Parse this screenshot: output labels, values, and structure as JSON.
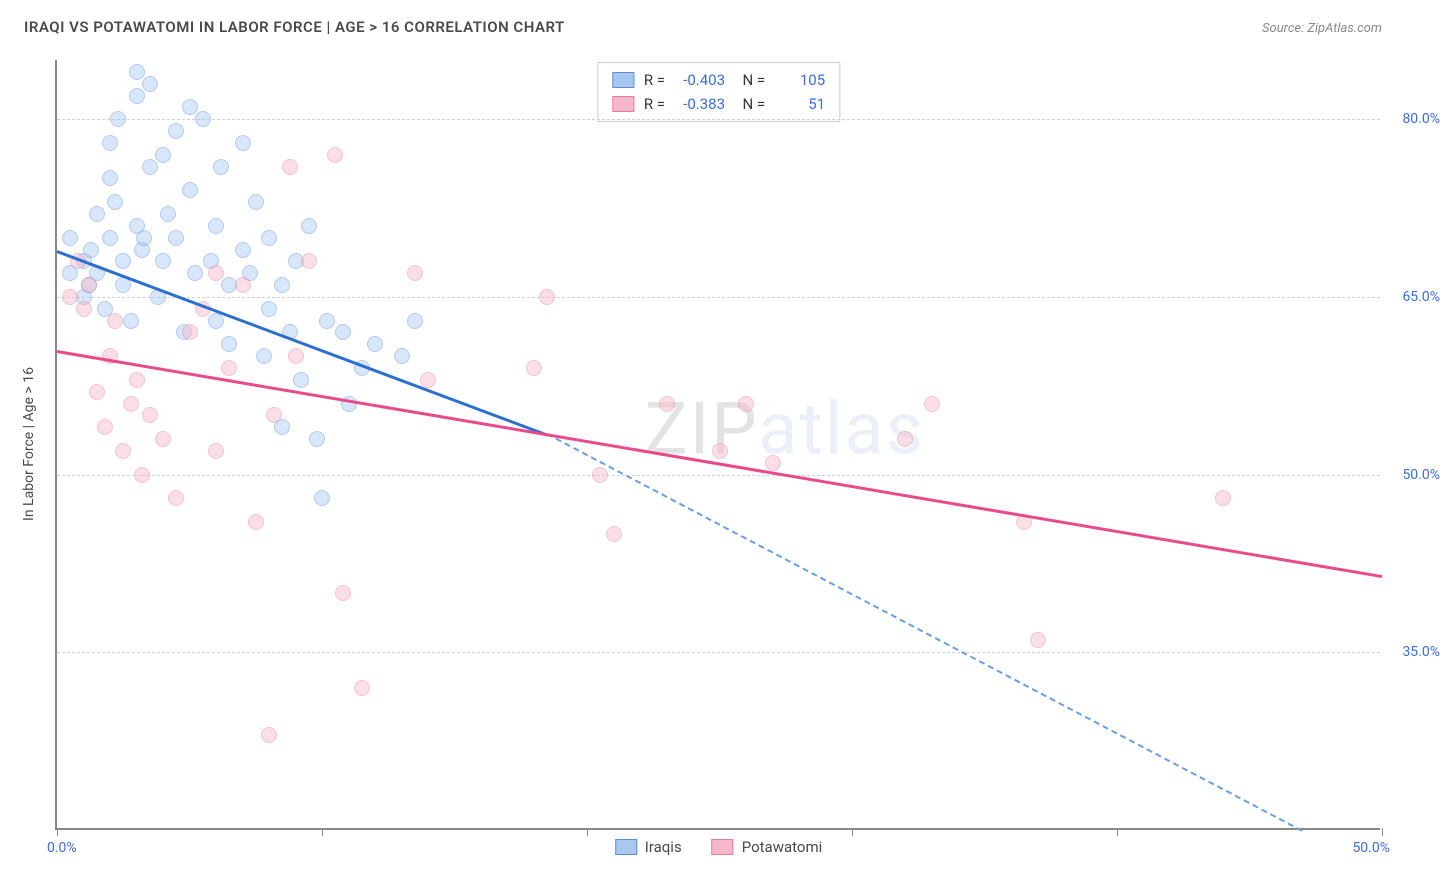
{
  "title": "IRAQI VS POTAWATOMI IN LABOR FORCE | AGE > 16 CORRELATION CHART",
  "source": "Source: ZipAtlas.com",
  "watermark": "ZIPatlas",
  "ylabel": "In Labor Force | Age > 16",
  "chart": {
    "type": "scatter",
    "background_color": "#ffffff",
    "grid_color": "#d0d0d0",
    "axis_color": "#888888",
    "label_color": "#3b6fd6",
    "title_color": "#4a4a4a",
    "title_fontsize": 15,
    "label_fontsize": 14,
    "xlim": [
      0,
      50
    ],
    "ylim": [
      20,
      85
    ],
    "xticks": [
      0,
      10,
      20,
      30,
      40,
      50
    ],
    "xtick_labels": {
      "0": "0.0%",
      "50": "50.0%"
    },
    "yticks": [
      35,
      50,
      65,
      80
    ],
    "ytick_labels": [
      "35.0%",
      "50.0%",
      "65.0%",
      "80.0%"
    ],
    "point_radius": 8,
    "point_opacity": 0.45,
    "series": [
      {
        "name": "Iraqis",
        "color_fill": "#a8c8f0",
        "color_stroke": "#5a8fd8",
        "r": "-0.403",
        "n": "105",
        "trend": {
          "x1": 0,
          "y1": 69,
          "x2": 18.5,
          "y2": 53.5,
          "color": "#2d6fd0",
          "width": 2.5,
          "dashed": false
        },
        "trend_ext": {
          "x1": 18.5,
          "y1": 53.5,
          "x2": 47,
          "y2": 20,
          "color": "#6a9fe0",
          "width": 2,
          "dashed": true
        },
        "points": [
          [
            0.5,
            67
          ],
          [
            0.5,
            70
          ],
          [
            1,
            68
          ],
          [
            1,
            65
          ],
          [
            1.2,
            66
          ],
          [
            1.3,
            69
          ],
          [
            1.5,
            72
          ],
          [
            1.5,
            67
          ],
          [
            1.8,
            64
          ],
          [
            2,
            70
          ],
          [
            2,
            78
          ],
          [
            2,
            75
          ],
          [
            2.2,
            73
          ],
          [
            2.3,
            80
          ],
          [
            2.5,
            68
          ],
          [
            2.5,
            66
          ],
          [
            2.8,
            63
          ],
          [
            3,
            82
          ],
          [
            3,
            84
          ],
          [
            3,
            71
          ],
          [
            3.2,
            69
          ],
          [
            3.3,
            70
          ],
          [
            3.5,
            76
          ],
          [
            3.5,
            83
          ],
          [
            3.8,
            65
          ],
          [
            4,
            77
          ],
          [
            4,
            68
          ],
          [
            4.2,
            72
          ],
          [
            4.5,
            79
          ],
          [
            4.5,
            70
          ],
          [
            4.8,
            62
          ],
          [
            5,
            74
          ],
          [
            5,
            81
          ],
          [
            5.2,
            67
          ],
          [
            5.5,
            80
          ],
          [
            5.8,
            68
          ],
          [
            6,
            71
          ],
          [
            6,
            63
          ],
          [
            6.2,
            76
          ],
          [
            6.5,
            66
          ],
          [
            6.5,
            61
          ],
          [
            7,
            69
          ],
          [
            7,
            78
          ],
          [
            7.3,
            67
          ],
          [
            7.5,
            73
          ],
          [
            7.8,
            60
          ],
          [
            8,
            64
          ],
          [
            8,
            70
          ],
          [
            8.5,
            66
          ],
          [
            8.5,
            54
          ],
          [
            8.8,
            62
          ],
          [
            9,
            68
          ],
          [
            9.2,
            58
          ],
          [
            9.5,
            71
          ],
          [
            9.8,
            53
          ],
          [
            10,
            48
          ],
          [
            10.2,
            63
          ],
          [
            10.8,
            62
          ],
          [
            11,
            56
          ],
          [
            11.5,
            59
          ],
          [
            12,
            61
          ],
          [
            13,
            60
          ],
          [
            13.5,
            63
          ]
        ]
      },
      {
        "name": "Potawatomi",
        "color_fill": "#f5b8ca",
        "color_stroke": "#e87ba0",
        "r": "-0.383",
        "n": "51",
        "trend": {
          "x1": 0,
          "y1": 60.5,
          "x2": 50,
          "y2": 41.5,
          "color": "#e84a8a",
          "width": 2.5,
          "dashed": false
        },
        "points": [
          [
            0.5,
            65
          ],
          [
            0.8,
            68
          ],
          [
            1,
            64
          ],
          [
            1.2,
            66
          ],
          [
            1.5,
            57
          ],
          [
            1.8,
            54
          ],
          [
            2,
            60
          ],
          [
            2.2,
            63
          ],
          [
            2.5,
            52
          ],
          [
            2.8,
            56
          ],
          [
            3,
            58
          ],
          [
            3.2,
            50
          ],
          [
            3.5,
            55
          ],
          [
            4,
            53
          ],
          [
            4.5,
            48
          ],
          [
            5,
            62
          ],
          [
            5.5,
            64
          ],
          [
            6,
            52
          ],
          [
            6,
            67
          ],
          [
            6.5,
            59
          ],
          [
            7,
            66
          ],
          [
            7.5,
            46
          ],
          [
            8,
            28
          ],
          [
            8.2,
            55
          ],
          [
            8.8,
            76
          ],
          [
            9,
            60
          ],
          [
            9.5,
            68
          ],
          [
            10.5,
            77
          ],
          [
            10.8,
            40
          ],
          [
            11.5,
            32
          ],
          [
            13.5,
            67
          ],
          [
            14,
            58
          ],
          [
            18,
            59
          ],
          [
            18.5,
            65
          ],
          [
            20.5,
            50
          ],
          [
            21,
            45
          ],
          [
            23,
            56
          ],
          [
            25,
            52
          ],
          [
            26,
            56
          ],
          [
            27,
            51
          ],
          [
            32,
            53
          ],
          [
            33,
            56
          ],
          [
            36.5,
            46
          ],
          [
            37,
            36
          ],
          [
            44,
            48
          ]
        ]
      }
    ],
    "bottom_legend": [
      {
        "label": "Iraqis",
        "fill": "#a8c8f0",
        "stroke": "#5a8fd8"
      },
      {
        "label": "Potawatomi",
        "fill": "#f5b8ca",
        "stroke": "#e87ba0"
      }
    ]
  }
}
